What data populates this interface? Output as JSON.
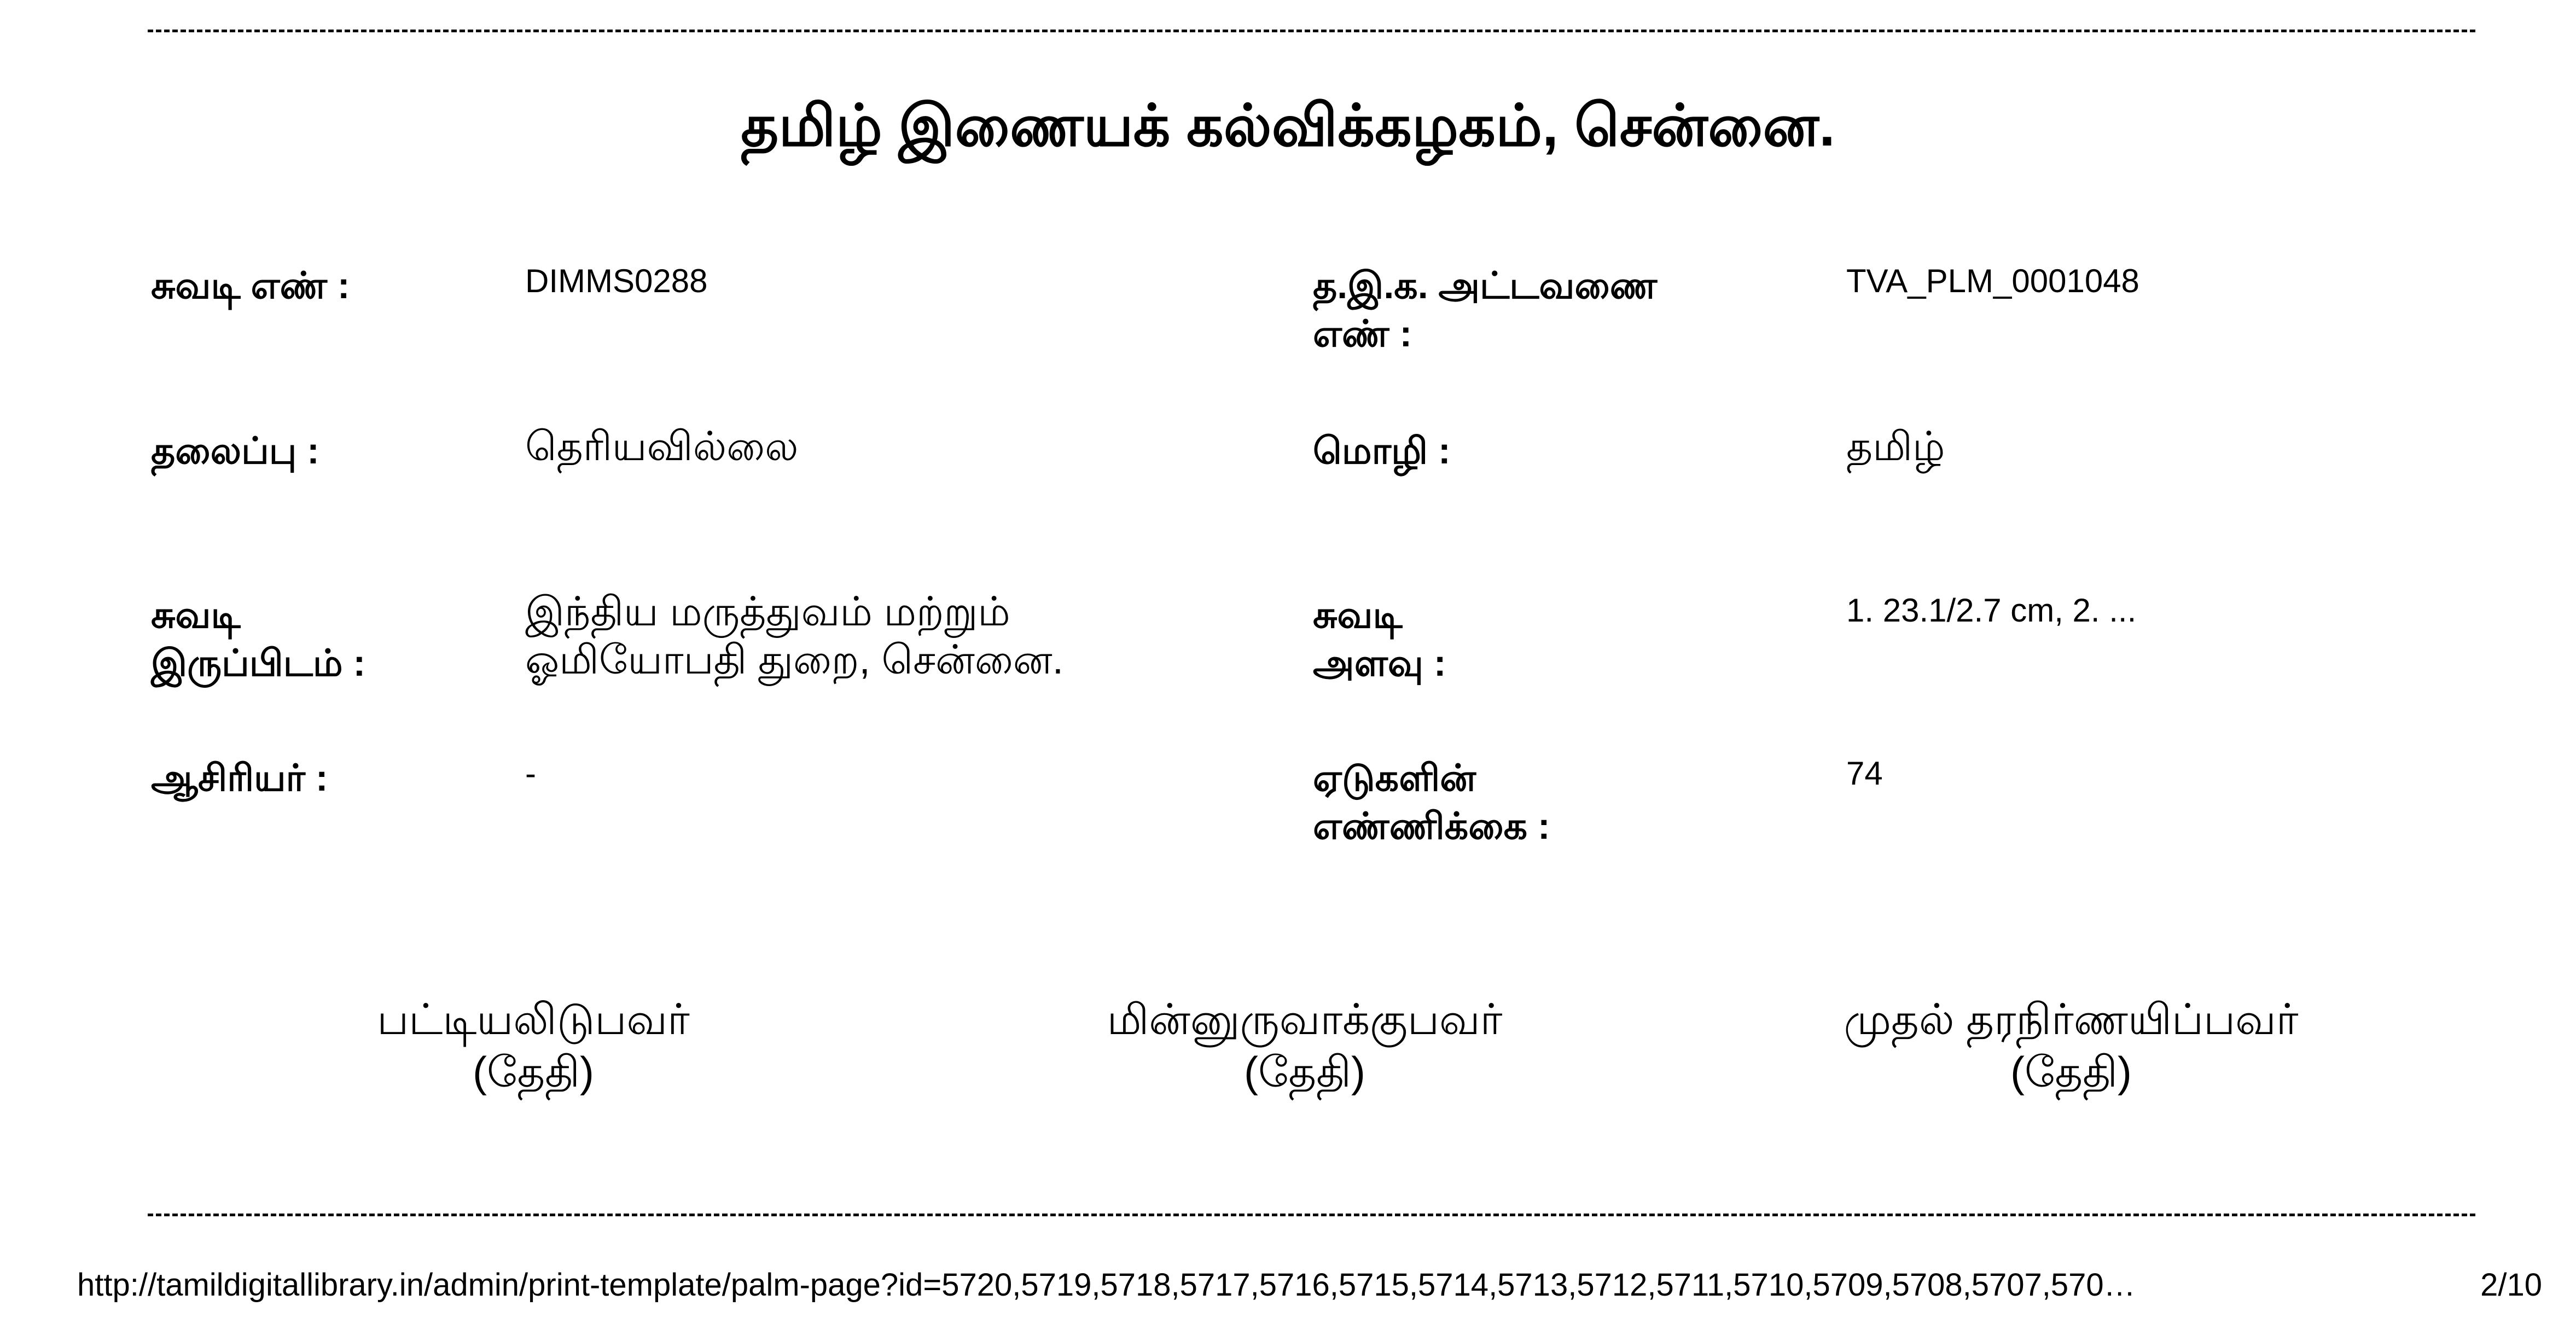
{
  "title": "தமிழ் இணையக் கல்விக்கழகம், சென்னை.",
  "fields_left": [
    {
      "label": "சுவடி எண் :",
      "value": "DIMMS0288"
    },
    {
      "label": "தலைப்பு :",
      "value": "தெரியவில்லை"
    },
    {
      "label_line1": "சுவடி",
      "label_line2": "இருப்பிடம் :",
      "value_line1": "இந்திய மருத்துவம் மற்றும்",
      "value_line2": "ஓமியோபதி துறை, சென்னை."
    },
    {
      "label": "ஆசிரியர் :",
      "value": "-"
    }
  ],
  "fields_right": [
    {
      "label_line1": "த.இ.க. அட்டவணை",
      "label_line2": "எண் :",
      "value": "TVA_PLM_0001048"
    },
    {
      "label": "மொழி :",
      "value": "தமிழ்"
    },
    {
      "label_line1": "சுவடி",
      "label_line2": "அளவு :",
      "value": "1. 23.1/2.7 cm, 2. ..."
    },
    {
      "label_line1": "ஏடுகளின்",
      "label_line2": "எண்ணிக்கை :",
      "value": "74"
    }
  ],
  "signatures": [
    {
      "role": "பட்டியலிடுபவர்",
      "date": "(தேதி)"
    },
    {
      "role": "மின்னுருவாக்குபவர்",
      "date": "(தேதி)"
    },
    {
      "role": "முதல் தரநிர்ணயிப்பவர்",
      "date": "(தேதி)"
    }
  ],
  "footer": {
    "url": "http://tamildigitallibrary.in/admin/print-template/palm-page?id=5720,5719,5718,5717,5716,5715,5714,5713,5712,5711,5710,5709,5708,5707,570…",
    "page": "2/10"
  }
}
